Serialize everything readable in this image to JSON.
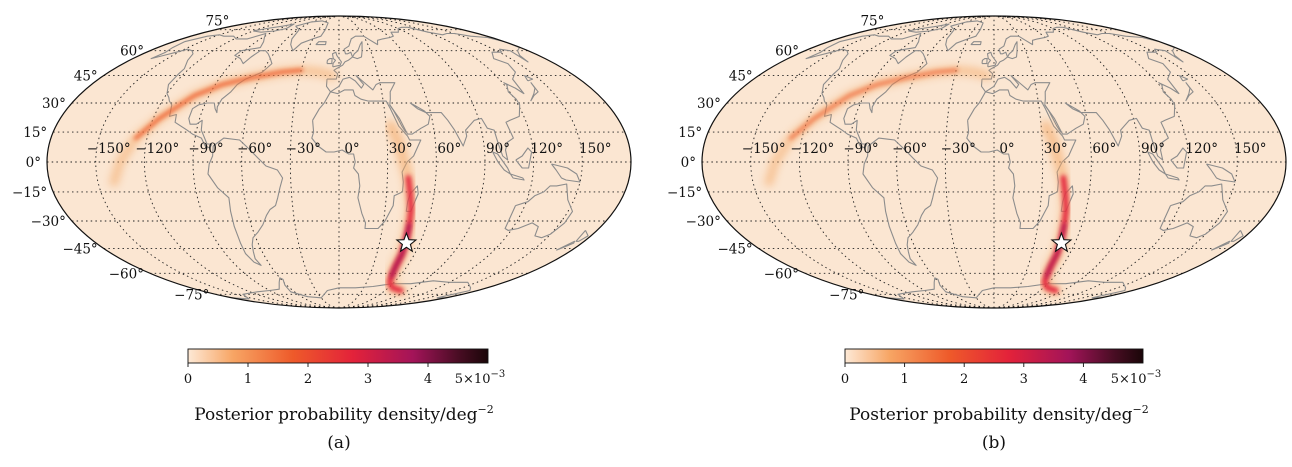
{
  "panels": [
    {
      "id": "a",
      "sublabel": "(a)",
      "lat_labels": [
        "75°",
        "60°",
        "45°",
        "30°",
        "15°",
        "0°",
        "−15°",
        "−30°",
        "−45°",
        "−60°",
        "−75°"
      ],
      "lon_labels": [
        "−150°",
        "−120°",
        "−90°",
        "−60°",
        "−30°",
        "0°",
        "30°",
        "60°",
        "90°",
        "120°",
        "150°"
      ],
      "marker": {
        "lon": 50,
        "lat": -42,
        "name": "star"
      },
      "colorbar": {
        "ticks": [
          "0",
          "1",
          "2",
          "3",
          "4"
        ],
        "max_label": "5×10",
        "max_exp": "−3",
        "label": "Posterior probability density/deg",
        "label_exp": "−2"
      }
    },
    {
      "id": "b",
      "sublabel": "(b)",
      "lat_labels": [
        "75°",
        "60°",
        "45°",
        "30°",
        "15°",
        "0°",
        "−15°",
        "−30°",
        "−45°",
        "−60°",
        "−75°"
      ],
      "lon_labels": [
        "−150°",
        "−120°",
        "−90°",
        "−60°",
        "−30°",
        "0°",
        "30°",
        "60°",
        "90°",
        "120°",
        "150°"
      ],
      "marker": {
        "lon": 50,
        "lat": -42,
        "name": "star"
      },
      "colorbar": {
        "ticks": [
          "0",
          "1",
          "2",
          "3",
          "4"
        ],
        "max_label": "5×10",
        "max_exp": "−3",
        "label": "Posterior probability density/deg",
        "label_exp": "−2"
      }
    }
  ],
  "colormap": [
    "#fde9d6",
    "#f7a564",
    "#ee5a2a",
    "#e3223a",
    "#a31459",
    "#4a0d24",
    "#1a0608"
  ]
}
